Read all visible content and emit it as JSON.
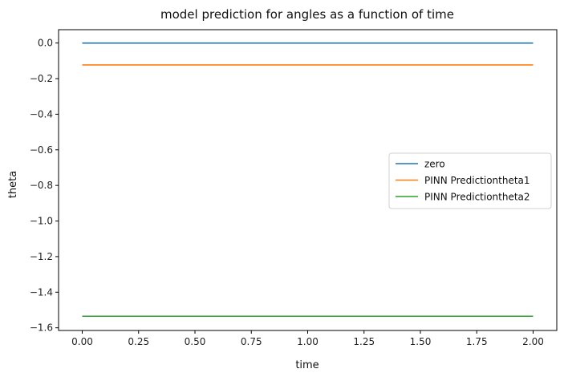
{
  "chart_data": {
    "type": "line",
    "title": "model prediction for angles as a function of time",
    "xlabel": "time",
    "ylabel": "theta",
    "xlim": [
      -0.105,
      2.105
    ],
    "ylim": [
      -1.615,
      0.075
    ],
    "xticks": [
      0.0,
      0.25,
      0.5,
      0.75,
      1.0,
      1.25,
      1.5,
      1.75,
      2.0
    ],
    "xtick_labels": [
      "0.00",
      "0.25",
      "0.50",
      "0.75",
      "1.00",
      "1.25",
      "1.50",
      "1.75",
      "2.00"
    ],
    "yticks": [
      0.0,
      -0.2,
      -0.4,
      -0.6,
      -0.8,
      -1.0,
      -1.2,
      -1.4,
      -1.6
    ],
    "ytick_labels": [
      "0.0",
      "−0.2",
      "−0.4",
      "−0.6",
      "−0.8",
      "−1.0",
      "−1.2",
      "−1.4",
      "−1.6"
    ],
    "grid": false,
    "legend_position": "center-right",
    "series": [
      {
        "name": "zero",
        "color": "#1f77b4",
        "x": [
          0.0,
          2.0
        ],
        "y": [
          0.0,
          0.0
        ]
      },
      {
        "name": "PINN Predictiontheta1",
        "color": "#ff7f0e",
        "x": [
          0.0,
          2.0
        ],
        "y": [
          -0.123,
          -0.123
        ]
      },
      {
        "name": "PINN Predictiontheta2",
        "color": "#2ca02c",
        "x": [
          0.0,
          2.0
        ],
        "y": [
          -1.535,
          -1.535
        ]
      }
    ]
  }
}
